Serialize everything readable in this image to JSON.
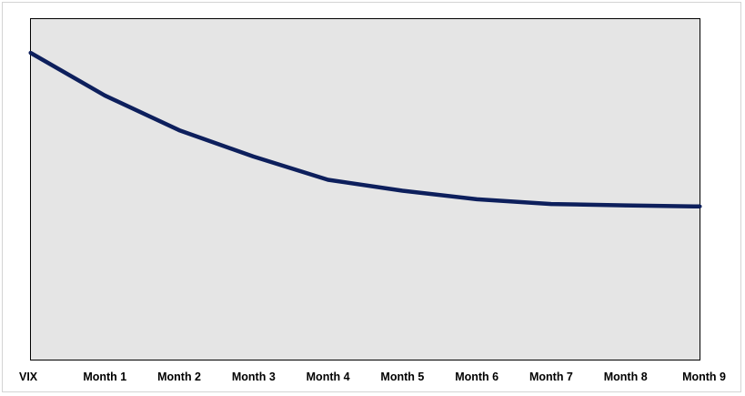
{
  "chart_data": {
    "type": "line",
    "title": "",
    "xlabel": "",
    "ylabel": "",
    "categories": [
      "VIX",
      "Month 1",
      "Month 2",
      "Month 3",
      "Month 4",
      "Month 5",
      "Month 6",
      "Month 7",
      "Month 8",
      "Month 9"
    ],
    "series": [
      {
        "values": [
          90,
          77.5,
          67.3,
          59.6,
          52.8,
          49.6,
          47.1,
          45.7,
          45.3,
          45.0
        ]
      }
    ],
    "ylim": [
      0,
      100
    ],
    "grid": false,
    "legend": "none",
    "colors": {
      "line": "#0d1f5c",
      "plot_background": "#e5e5e5",
      "plot_border": "#000000"
    }
  }
}
